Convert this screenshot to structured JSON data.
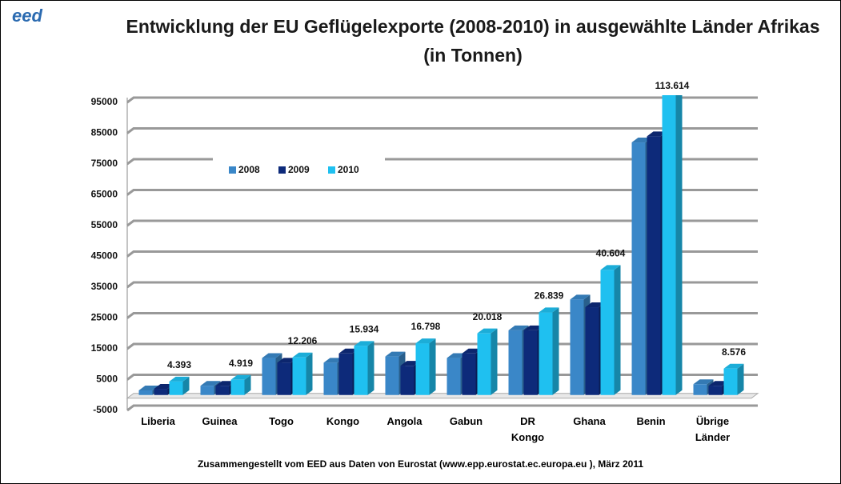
{
  "logo": "eed",
  "chart_data": {
    "type": "bar",
    "title": "Entwicklung der EU Geflügelexporte (2008-2010) in ausgewählte Länder Afrikas (in Tonnen)",
    "categories": [
      "Liberia",
      "Guinea",
      "Togo",
      "Kongo",
      "Angola",
      "Gabun",
      "DR Kongo",
      "Ghana",
      "Benin",
      "Übrige Länder"
    ],
    "series": [
      {
        "name": "2008",
        "color": "#3a87c8",
        "values": [
          1500,
          3000,
          12000,
          10500,
          12500,
          12000,
          21000,
          31000,
          82000,
          3500
        ]
      },
      {
        "name": "2009",
        "color": "#0d2a7a",
        "values": [
          2000,
          3000,
          10500,
          13500,
          9500,
          13500,
          21000,
          28500,
          84000,
          3000
        ]
      },
      {
        "name": "2010",
        "color": "#1fc0f0",
        "values": [
          4393,
          4919,
          12206,
          15934,
          16798,
          20018,
          26839,
          40604,
          113614,
          8576
        ],
        "value_labels": [
          "4.393",
          "4.919",
          "12.206",
          "15.934",
          "16.798",
          "20.018",
          "26.839",
          "40.604",
          "113.614",
          "8.576"
        ]
      }
    ],
    "ylim": [
      -5000,
      95000
    ],
    "yticks": [
      -5000,
      5000,
      15000,
      25000,
      35000,
      45000,
      55000,
      65000,
      75000,
      85000,
      95000
    ],
    "grid": true,
    "legend": "upper left",
    "source": "Zusammengestellt vom EED aus Daten von  Eurostat (www.epp.eurostat.ec.europa.eu ), März  2011"
  }
}
